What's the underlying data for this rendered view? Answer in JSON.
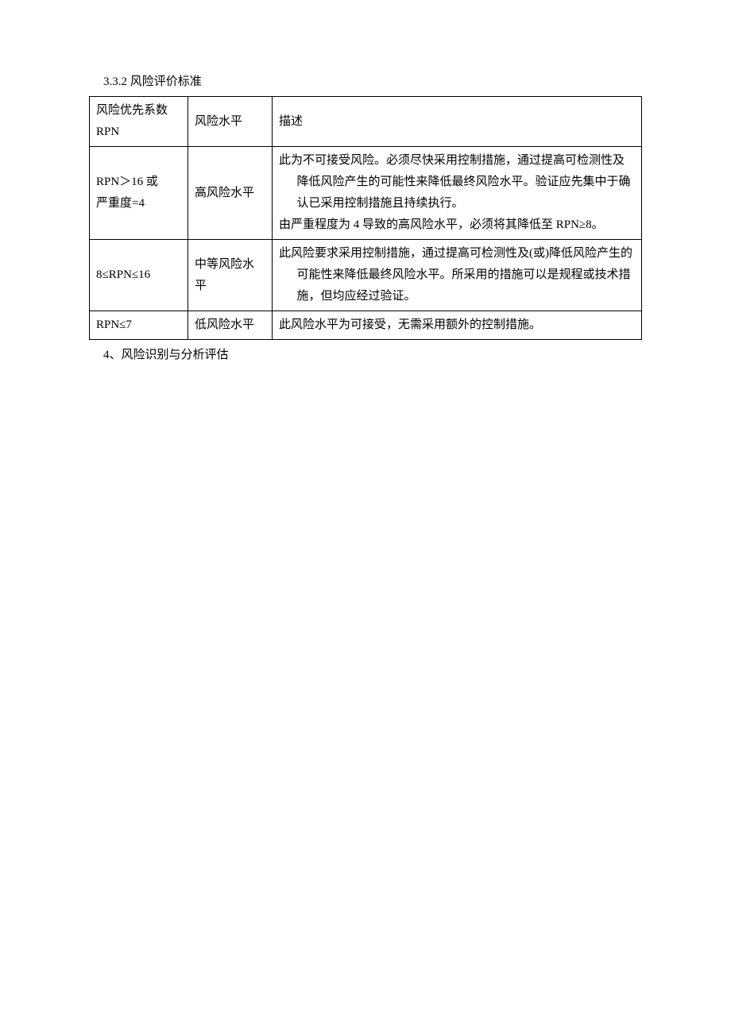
{
  "heading": "3.3.2 风险评价标准",
  "table": {
    "header": {
      "col1_line1": "风险优先系数",
      "col1_line2": "RPN",
      "col2": "风险水平",
      "col3": "描述"
    },
    "rows": [
      {
        "col1_line1": "RPN＞16 或",
        "col1_line2": "严重度=4",
        "col2": "高风险水平",
        "col3_line1": "此为不可接受风险。必须尽快采用控制措施，通过提高可检测性及降低风险产生的可能性来降低最终风险水平。验证应先集中于确认已采用控制措施且持续执行。",
        "col3_line2": "由严重程度为 4 导致的高风险水平，必须将其降低至 RPN≥8。"
      },
      {
        "col1": "8≤RPN≤16",
        "col2": "中等风险水平",
        "col3": "此风险要求采用控制措施，通过提高可检测性及(或)降低风险产生的可能性来降低最终风险水平。所采用的措施可以是规程或技术措施，但均应经过验证。"
      },
      {
        "col1": "RPN≤7",
        "col2": "低风险水平",
        "col3": "此风险水平为可接受，无需采用额外的控制措施。"
      }
    ]
  },
  "footer": "4、风险识别与分析评估"
}
